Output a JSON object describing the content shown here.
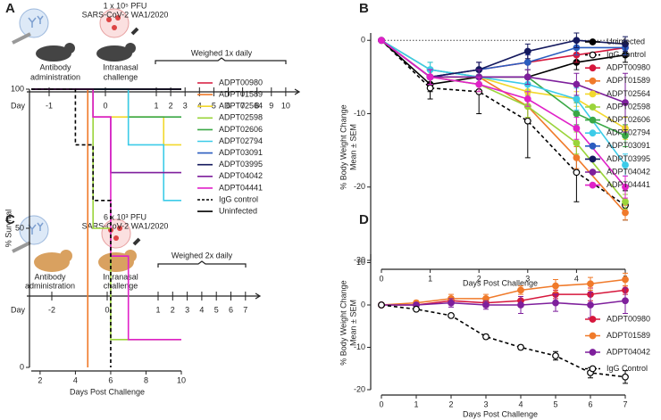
{
  "panel_labels": [
    "A",
    "B",
    "C",
    "D"
  ],
  "diagram": {
    "mouse": {
      "dose": "1 x 10⁵ PFU",
      "strain": "SARS-CoV-2 WA1/2020",
      "antibody": [
        "Antibody",
        "administration"
      ],
      "challenge": [
        "Intranasal",
        "challenge"
      ],
      "weighed": "Weighed 1x daily",
      "day_label": "Day",
      "days": [
        "-1",
        "0",
        "1",
        "2",
        "3",
        "4",
        "5",
        "6",
        "7",
        "8",
        "9",
        "10"
      ]
    },
    "hamster": {
      "dose": "6 x 10³ PFU",
      "strain": "SARS-CoV-2 WA1/2020",
      "antibody": [
        "Antibody",
        "administration"
      ],
      "challenge": [
        "Intranasal",
        "challenge"
      ],
      "weighed": "Weighed 2x daily",
      "day_label": "Day",
      "days": [
        "-2",
        "0",
        "1",
        "2",
        "3",
        "4",
        "5",
        "6",
        "7"
      ]
    }
  },
  "chart_data": [
    {
      "type": "line",
      "xlabel": "Days Post Challenge",
      "ylabel": [
        "% Body Weight Change",
        "Mean ± SEM"
      ],
      "x": [
        0,
        1,
        2,
        3,
        4,
        5
      ],
      "xlim": [
        0,
        5
      ],
      "xticks": [
        0,
        1,
        2,
        3,
        4,
        5
      ],
      "ylim": [
        -30,
        1
      ],
      "yticks": [
        0,
        -10,
        -20,
        -30
      ],
      "hline": 0,
      "legend": "right",
      "series": [
        {
          "name": "Uninfected",
          "color": "#000000",
          "marker": "filled",
          "values": [
            0,
            -6,
            -5,
            -5,
            -3,
            -2
          ],
          "errors": [
            0,
            1,
            1,
            1,
            1,
            1
          ]
        },
        {
          "name": "IgG control",
          "color": "#000000",
          "marker": "open",
          "dash": true,
          "values": [
            0,
            -6.5,
            -7,
            -11,
            -18,
            -22.5
          ],
          "errors": [
            0,
            1.5,
            3,
            5,
            4,
            2
          ]
        },
        {
          "name": "ADPT00980",
          "color": "#d6173c",
          "marker": "filled",
          "values": [
            0,
            -5,
            -4,
            -3,
            -2,
            -1
          ],
          "errors": [
            0,
            1,
            1,
            1,
            1,
            1
          ]
        },
        {
          "name": "ADPT01589",
          "color": "#f07a2a",
          "marker": "filled",
          "values": [
            0,
            -5,
            -5,
            -9,
            -16,
            -23.5
          ],
          "errors": [
            0,
            1,
            1,
            1.5,
            1.5,
            1
          ]
        },
        {
          "name": "ADPT02564",
          "color": "#f2d82c",
          "marker": "filled",
          "values": [
            0,
            -5,
            -5,
            -7,
            -8,
            -12
          ],
          "errors": [
            0,
            1,
            1,
            1,
            1,
            1.5
          ]
        },
        {
          "name": "ADPT02598",
          "color": "#9ad43a",
          "marker": "filled",
          "values": [
            0,
            -5,
            -6,
            -9,
            -14,
            -22
          ],
          "errors": [
            0,
            1,
            1,
            1.5,
            1.5,
            1
          ]
        },
        {
          "name": "ADPT02606",
          "color": "#3aa846",
          "marker": "filled",
          "values": [
            0,
            -4,
            -5,
            -5,
            -10,
            -13
          ],
          "errors": [
            0,
            1,
            1,
            1,
            1.5,
            1.5
          ]
        },
        {
          "name": "ADPT02794",
          "color": "#3ccbe8",
          "marker": "filled",
          "values": [
            0,
            -4,
            -5,
            -6,
            -8,
            -17
          ],
          "errors": [
            0,
            1,
            1,
            1,
            1.5,
            1.5
          ]
        },
        {
          "name": "ADPT03091",
          "color": "#2a5dbf",
          "marker": "filled",
          "values": [
            0,
            -5,
            -4,
            -3,
            -1,
            -1
          ],
          "errors": [
            0,
            1,
            1,
            1,
            1,
            1
          ]
        },
        {
          "name": "ADPT03995",
          "color": "#14195e",
          "marker": "filled",
          "values": [
            0,
            -5,
            -4,
            -1.5,
            0,
            -0.5
          ],
          "errors": [
            0,
            1,
            1,
            1,
            1,
            1
          ]
        },
        {
          "name": "ADPT04042",
          "color": "#7e1f9c",
          "marker": "filled",
          "values": [
            0,
            -5,
            -5,
            -5,
            -6,
            -8.5
          ],
          "errors": [
            0,
            1,
            1,
            1,
            1.5,
            4
          ]
        },
        {
          "name": "ADPT04441",
          "color": "#e021c8",
          "marker": "filled",
          "values": [
            0,
            -5,
            -6,
            -8,
            -12,
            -20
          ],
          "errors": [
            0,
            1,
            1,
            1,
            1.5,
            1.5
          ]
        }
      ]
    },
    {
      "type": "step",
      "xlabel": "Days Post Challenge",
      "ylabel": [
        "% Survival"
      ],
      "xlim": [
        1.5,
        10
      ],
      "xticks": [
        2,
        4,
        6,
        8,
        10
      ],
      "ylim": [
        0,
        100
      ],
      "yticks": [
        0,
        50,
        100
      ],
      "legend": "right",
      "series": [
        {
          "name": "ADPT00980",
          "color": "#d6173c",
          "x": [
            1.5,
            10
          ],
          "values": [
            100,
            100
          ]
        },
        {
          "name": "ADPT01589",
          "color": "#f07a2a",
          "x": [
            1.5,
            4.7,
            4.7
          ],
          "values": [
            100,
            100,
            0
          ]
        },
        {
          "name": "ADPT02564",
          "color": "#f2d82c",
          "x": [
            1.5,
            5,
            9,
            10
          ],
          "values": [
            100,
            90,
            80,
            80
          ]
        },
        {
          "name": "ADPT02598",
          "color": "#9ad43a",
          "x": [
            1.5,
            5,
            6,
            10
          ],
          "values": [
            100,
            50,
            10,
            10
          ]
        },
        {
          "name": "ADPT02606",
          "color": "#3aa846",
          "x": [
            1.5,
            7,
            10
          ],
          "values": [
            100,
            90,
            90
          ]
        },
        {
          "name": "ADPT02794",
          "color": "#3ccbe8",
          "x": [
            1.5,
            7,
            9,
            10
          ],
          "values": [
            100,
            80,
            60,
            60
          ]
        },
        {
          "name": "ADPT03091",
          "color": "#2a5dbf",
          "x": [
            1.5,
            10
          ],
          "values": [
            100,
            100
          ]
        },
        {
          "name": "ADPT03995",
          "color": "#14195e",
          "x": [
            1.5,
            10
          ],
          "values": [
            100,
            100
          ]
        },
        {
          "name": "ADPT04042",
          "color": "#7e1f9c",
          "x": [
            1.5,
            5,
            6,
            10
          ],
          "values": [
            100,
            90,
            70,
            70
          ]
        },
        {
          "name": "ADPT04441",
          "color": "#e021c8",
          "x": [
            1.5,
            5,
            6,
            7,
            10
          ],
          "values": [
            100,
            90,
            40,
            10,
            10
          ]
        },
        {
          "name": "IgG control",
          "color": "#000000",
          "dash": true,
          "x": [
            1.5,
            4,
            5,
            6
          ],
          "values": [
            100,
            80,
            60,
            0
          ]
        },
        {
          "name": "Uninfected",
          "color": "#000000",
          "x": [
            1.5,
            10
          ],
          "values": [
            100,
            100
          ]
        }
      ]
    },
    {
      "type": "line",
      "xlabel": "Days Post Challenge",
      "ylabel": [
        "% Body Weight Change",
        "Mean ± SEM"
      ],
      "x": [
        0,
        1,
        2,
        3,
        4,
        5,
        6,
        7
      ],
      "xlim": [
        0,
        7
      ],
      "xticks": [
        0,
        1,
        2,
        3,
        4,
        5,
        6,
        7
      ],
      "ylim": [
        -20,
        12
      ],
      "yticks": [
        -20,
        -10,
        0,
        10
      ],
      "legend": "right",
      "series": [
        {
          "name": "ADPT00980",
          "color": "#d6173c",
          "marker": "filled",
          "values": [
            0,
            0,
            1,
            0.5,
            1,
            2.5,
            2.5,
            3.5
          ],
          "errors": [
            0,
            0.5,
            1,
            1,
            1,
            1,
            1.5,
            1
          ]
        },
        {
          "name": "ADPT01589",
          "color": "#f07a2a",
          "marker": "filled",
          "values": [
            0,
            0.5,
            1.5,
            1.5,
            3.5,
            4.5,
            5,
            6
          ],
          "errors": [
            0,
            0.5,
            1,
            1,
            1,
            1.5,
            1.5,
            1.5
          ]
        },
        {
          "name": "ADPT04042",
          "color": "#7e1f9c",
          "marker": "filled",
          "values": [
            0,
            0,
            0.5,
            0,
            0,
            0.5,
            0,
            1
          ],
          "errors": [
            0,
            0.5,
            1,
            1,
            2,
            2,
            3,
            3
          ]
        },
        {
          "name": "IgG Control",
          "color": "#000000",
          "marker": "open",
          "dash": true,
          "values": [
            0,
            -1,
            -2.5,
            -7.5,
            -10,
            -12,
            -16,
            -17
          ],
          "errors": [
            0,
            0.3,
            0.3,
            0.5,
            0.5,
            1,
            1.2,
            1.5
          ]
        }
      ]
    }
  ]
}
